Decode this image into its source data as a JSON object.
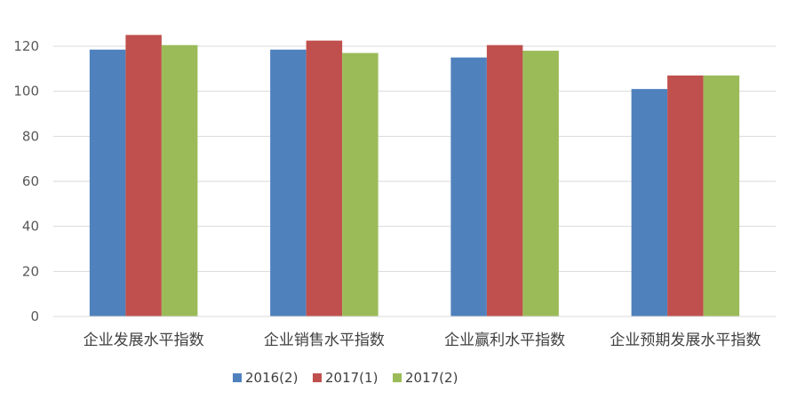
{
  "chart_data": {
    "type": "bar",
    "title": "",
    "xlabel": "",
    "ylabel": "",
    "categories": [
      "企业发展水平指数",
      "企业销售水平指数",
      "企业赢利水平指数",
      "企业预期发展水平指数"
    ],
    "series": [
      {
        "name": "2016(2)",
        "color": "#4F81BD",
        "values": [
          118.5,
          118.5,
          115,
          101
        ]
      },
      {
        "name": "2017(1)",
        "color": "#C0504D",
        "values": [
          125,
          122.5,
          120.5,
          107
        ]
      },
      {
        "name": "2017(2)",
        "color": "#9BBB59",
        "values": [
          120.5,
          117,
          118,
          107
        ]
      }
    ],
    "ylim": [
      0,
      120
    ],
    "yticks": [
      "0",
      "20",
      "40",
      "60",
      "80",
      "100",
      "120"
    ],
    "grid": true,
    "gridline_color": "#D9D9D9",
    "legend_position": "bottom"
  }
}
